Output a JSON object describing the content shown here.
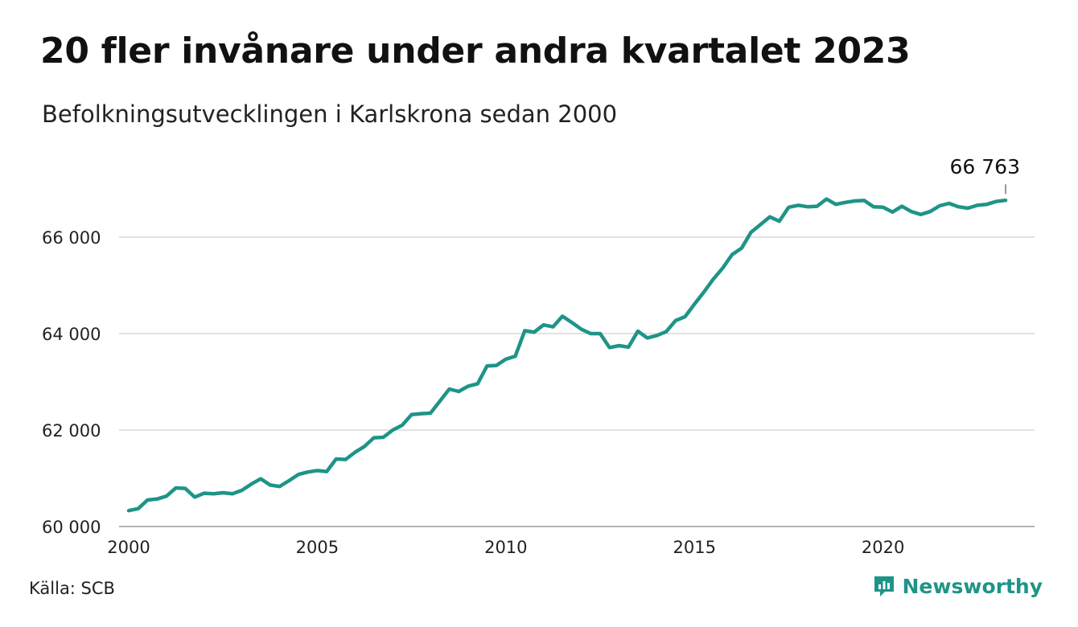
{
  "title": "20 fler invånare under andra kvartalet 2023",
  "subtitle": "Befolkningsutvecklingen i Karlskrona sedan 2000",
  "source": "Källa: SCB",
  "brand": {
    "name": "Newsworthy",
    "icon": "newsworthy-logo-icon"
  },
  "colors": {
    "line": "#1e9487",
    "grid": "#d9d9d9",
    "text": "#111111",
    "brand": "#1e9487"
  },
  "chart_data": {
    "type": "line",
    "title": "20 fler invånare under andra kvartalet 2023",
    "subtitle": "Befolkningsutvecklingen i Karlskrona sedan 2000",
    "xlabel": "",
    "ylabel": "",
    "xlim": [
      2000,
      2024.5
    ],
    "ylim": [
      60000,
      67000
    ],
    "grid": "horizontal",
    "legend": "none",
    "x_ticks": [
      {
        "value": 2000,
        "label": "2000"
      },
      {
        "value": 2005,
        "label": "2005"
      },
      {
        "value": 2010,
        "label": "2010"
      },
      {
        "value": 2015,
        "label": "2015"
      },
      {
        "value": 2020,
        "label": "2020"
      }
    ],
    "y_ticks": [
      {
        "value": 60000,
        "label": "60 000"
      },
      {
        "value": 62000,
        "label": "62 000"
      },
      {
        "value": 64000,
        "label": "64 000"
      },
      {
        "value": 66000,
        "label": "66 000"
      }
    ],
    "end_label": "66 763",
    "series": [
      {
        "x": [
          2000.0,
          2000.25,
          2000.5,
          2000.75,
          2001.0,
          2001.25,
          2001.5,
          2001.75,
          2002.0,
          2002.25,
          2002.5,
          2002.75,
          2003.0,
          2003.25,
          2003.5,
          2003.75,
          2004.0,
          2004.25,
          2004.5,
          2004.75,
          2005.0,
          2005.25,
          2005.5,
          2005.75,
          2006.0,
          2006.25,
          2006.5,
          2006.75,
          2007.0,
          2007.25,
          2007.5,
          2007.75,
          2008.0,
          2008.25,
          2008.5,
          2008.75,
          2009.0,
          2009.25,
          2009.5,
          2009.75,
          2010.0,
          2010.25,
          2010.5,
          2010.75,
          2011.0,
          2011.25,
          2011.5,
          2011.75,
          2012.0,
          2012.25,
          2012.5,
          2012.75,
          2013.0,
          2013.25,
          2013.5,
          2013.75,
          2014.0,
          2014.25,
          2014.5,
          2014.75,
          2015.0,
          2015.25,
          2015.5,
          2015.75,
          2016.0,
          2016.25,
          2016.5,
          2016.75,
          2017.0,
          2017.25,
          2017.5,
          2017.75,
          2018.0,
          2018.25,
          2018.5,
          2018.75,
          2019.0,
          2019.25,
          2019.5,
          2019.75,
          2020.0,
          2020.25,
          2020.5,
          2020.75,
          2021.0,
          2021.25,
          2021.5,
          2021.75,
          2022.0,
          2022.25,
          2022.5,
          2022.75,
          2023.0,
          2023.25
        ],
        "values": [
          60330,
          60370,
          60550,
          60570,
          60630,
          60800,
          60790,
          60610,
          60690,
          60680,
          60700,
          60680,
          60750,
          60880,
          60990,
          60860,
          60830,
          60950,
          61080,
          61130,
          61160,
          61140,
          61400,
          61390,
          61540,
          61660,
          61840,
          61850,
          62000,
          62100,
          62320,
          62340,
          62350,
          62600,
          62850,
          62800,
          62910,
          62960,
          63330,
          63340,
          63470,
          63530,
          64060,
          64030,
          64180,
          64140,
          64360,
          64230,
          64090,
          64000,
          64000,
          63710,
          63750,
          63720,
          64050,
          63910,
          63960,
          64040,
          64270,
          64350,
          64610,
          64860,
          65130,
          65360,
          65640,
          65770,
          66100,
          66260,
          66420,
          66330,
          66620,
          66660,
          66630,
          66640,
          66790,
          66680,
          66720,
          66750,
          66760,
          66630,
          66620,
          66520,
          66640,
          66530,
          66470,
          66530,
          66650,
          66700,
          66630,
          66600,
          66660,
          66680,
          66740,
          66763
        ]
      }
    ]
  }
}
